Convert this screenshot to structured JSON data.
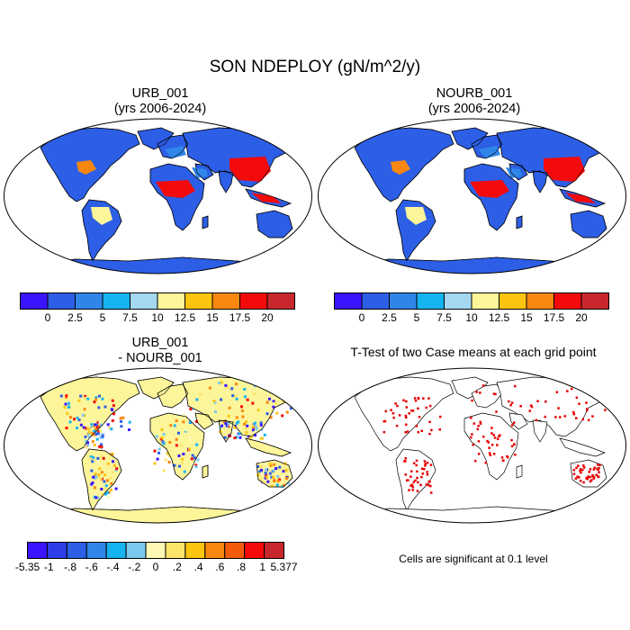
{
  "figure": {
    "title": "SON NDEPLOY (gN/m^2/y)"
  },
  "panels": [
    {
      "id": "urb",
      "title_line1": "URB_001",
      "title_line2": "(yrs 2006-2024)"
    },
    {
      "id": "nourb",
      "title_line1": "NOURB_001",
      "title_line2": "(yrs 2006-2024)"
    },
    {
      "id": "diff",
      "title_line1": "URB_001",
      "title_line2": "- NOURB_001"
    },
    {
      "id": "ttest",
      "title_line1": "T-Test of two Case means at each grid point",
      "title_line2": ""
    }
  ],
  "colorbar_abs": {
    "colors": [
      "#3c14ff",
      "#2d5ee6",
      "#2f86e8",
      "#15b4f0",
      "#a5d8f0",
      "#fdf59a",
      "#fbc40e",
      "#f7870f",
      "#f30a0a",
      "#c8282d"
    ],
    "labels": [
      "0",
      "2.5",
      "5",
      "7.5",
      "10",
      "12.5",
      "15",
      "17.5",
      "20"
    ]
  },
  "colorbar_diff": {
    "colors": [
      "#3c14ff",
      "#2d3ee8",
      "#2d5ee6",
      "#2f86e8",
      "#15b4f0",
      "#7ac8ee",
      "#fdf8b4",
      "#fde46a",
      "#fbc40e",
      "#f7870f",
      "#f35a0a",
      "#f30a0a",
      "#c8282d"
    ],
    "labels": [
      "-5.35",
      "-1",
      "-.8",
      "-.6",
      "-.4",
      "-.2",
      "0",
      ".2",
      ".4",
      ".6",
      ".8",
      "1",
      "5.377"
    ]
  },
  "significance_note": "Cells are significant at 0.1 level",
  "map_colors": {
    "land_low": "#2d5ee6",
    "land_mid": "#2f86e8",
    "land_high": "#f30a0a",
    "diff_zero": "#fdf59a",
    "significant": "#e60000"
  }
}
